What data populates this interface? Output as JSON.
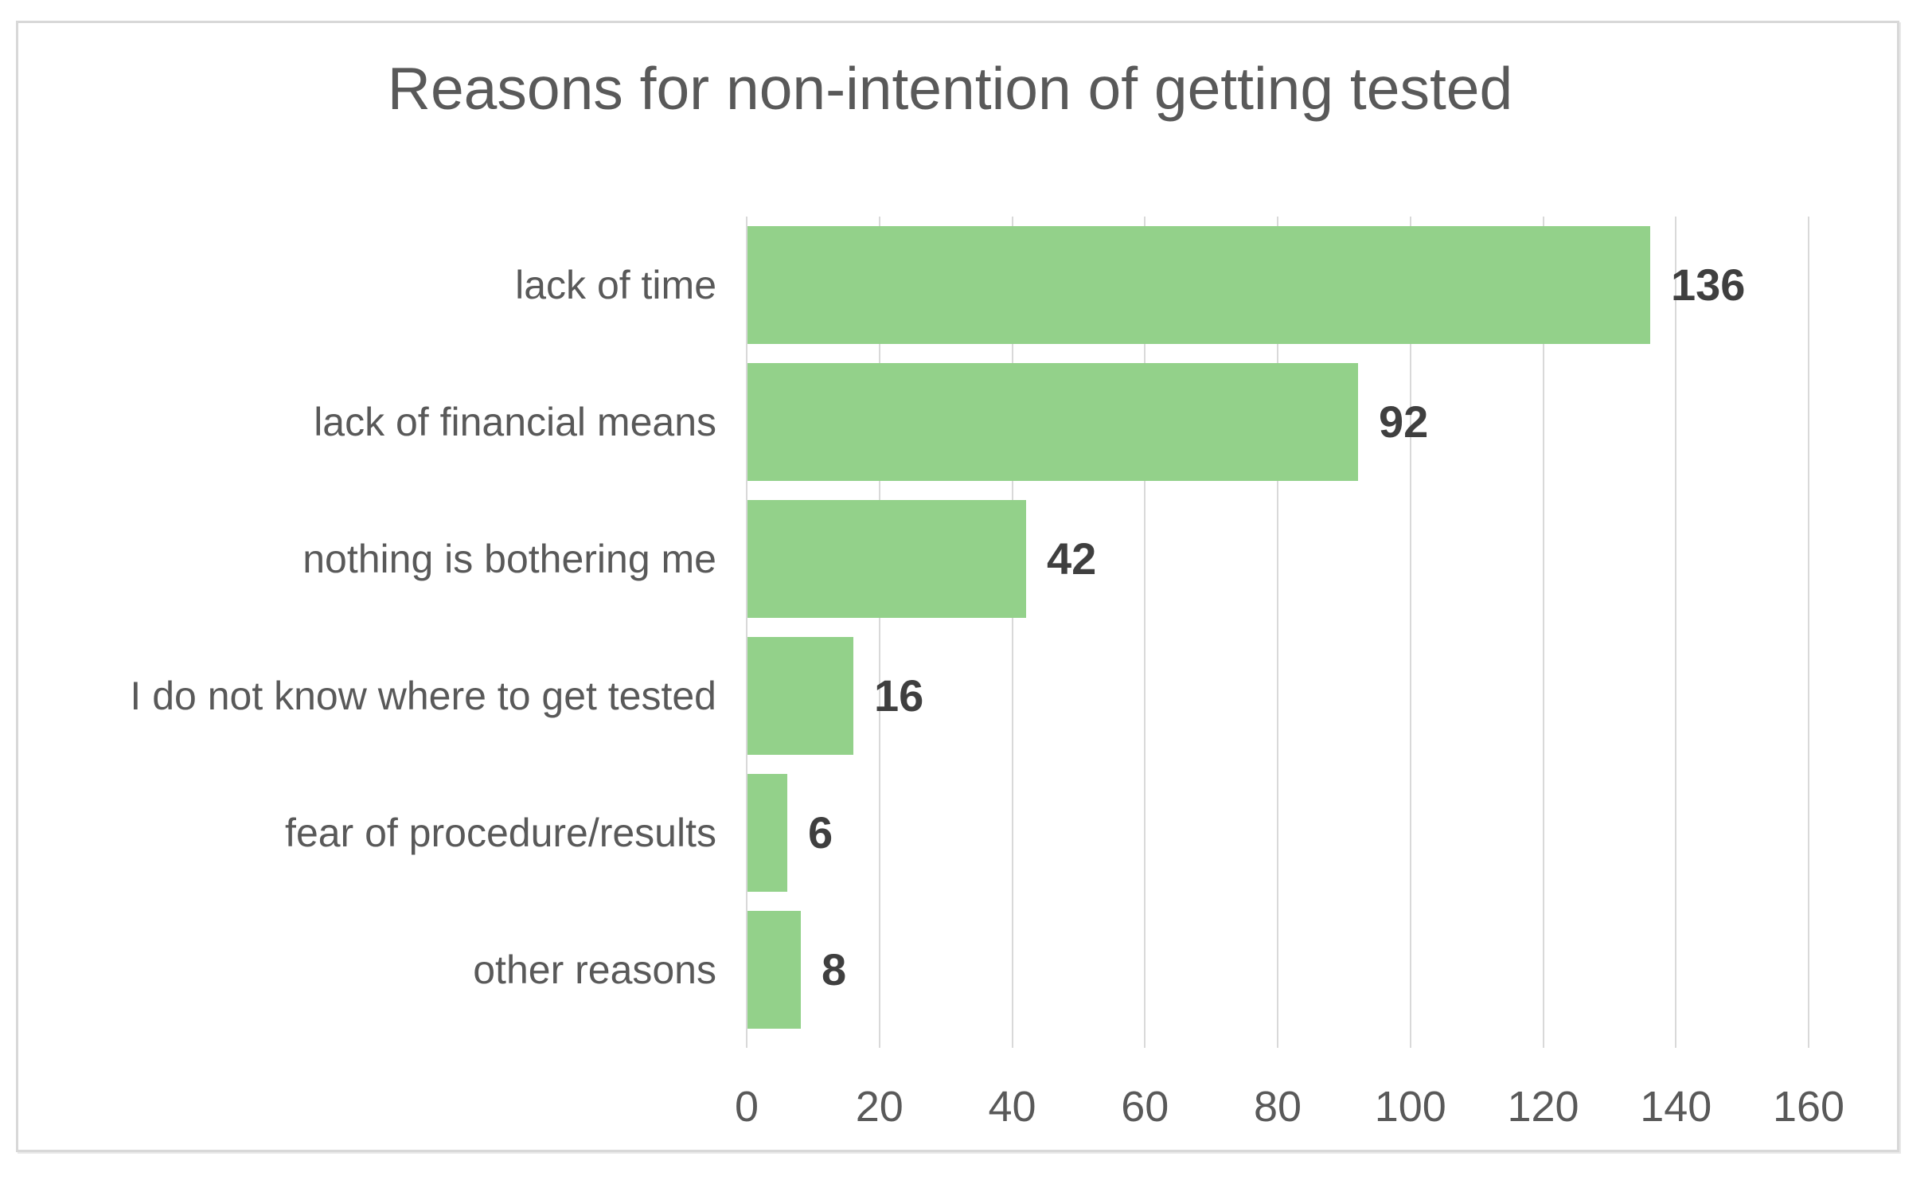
{
  "chart_data": {
    "type": "bar",
    "orientation": "horizontal",
    "title": "Reasons for non-intention of getting tested",
    "categories": [
      "lack of time",
      "lack of financial means",
      "nothing is bothering me",
      "I do not know where to get tested",
      "fear of procedure/results",
      "other reasons"
    ],
    "values": [
      136,
      92,
      42,
      16,
      6,
      8
    ],
    "data_labels": [
      "136",
      "92",
      "42",
      "16",
      "6",
      "8"
    ],
    "x_ticks": [
      0,
      20,
      40,
      60,
      80,
      100,
      120,
      140,
      160
    ],
    "x_tick_labels": [
      "0",
      "20",
      "40",
      "60",
      "80",
      "100",
      "120",
      "140",
      "160"
    ],
    "xlabel": "",
    "ylabel": "",
    "xlim": [
      0,
      160
    ],
    "grid": true,
    "legend": false,
    "colors": {
      "bar": "#93D18A",
      "gridline": "#D9D9D9",
      "border": "#D8D8D8",
      "title_text": "#595959",
      "axis_text": "#595959",
      "data_label_text": "#3F3F3F",
      "background": "#FFFFFF"
    }
  }
}
